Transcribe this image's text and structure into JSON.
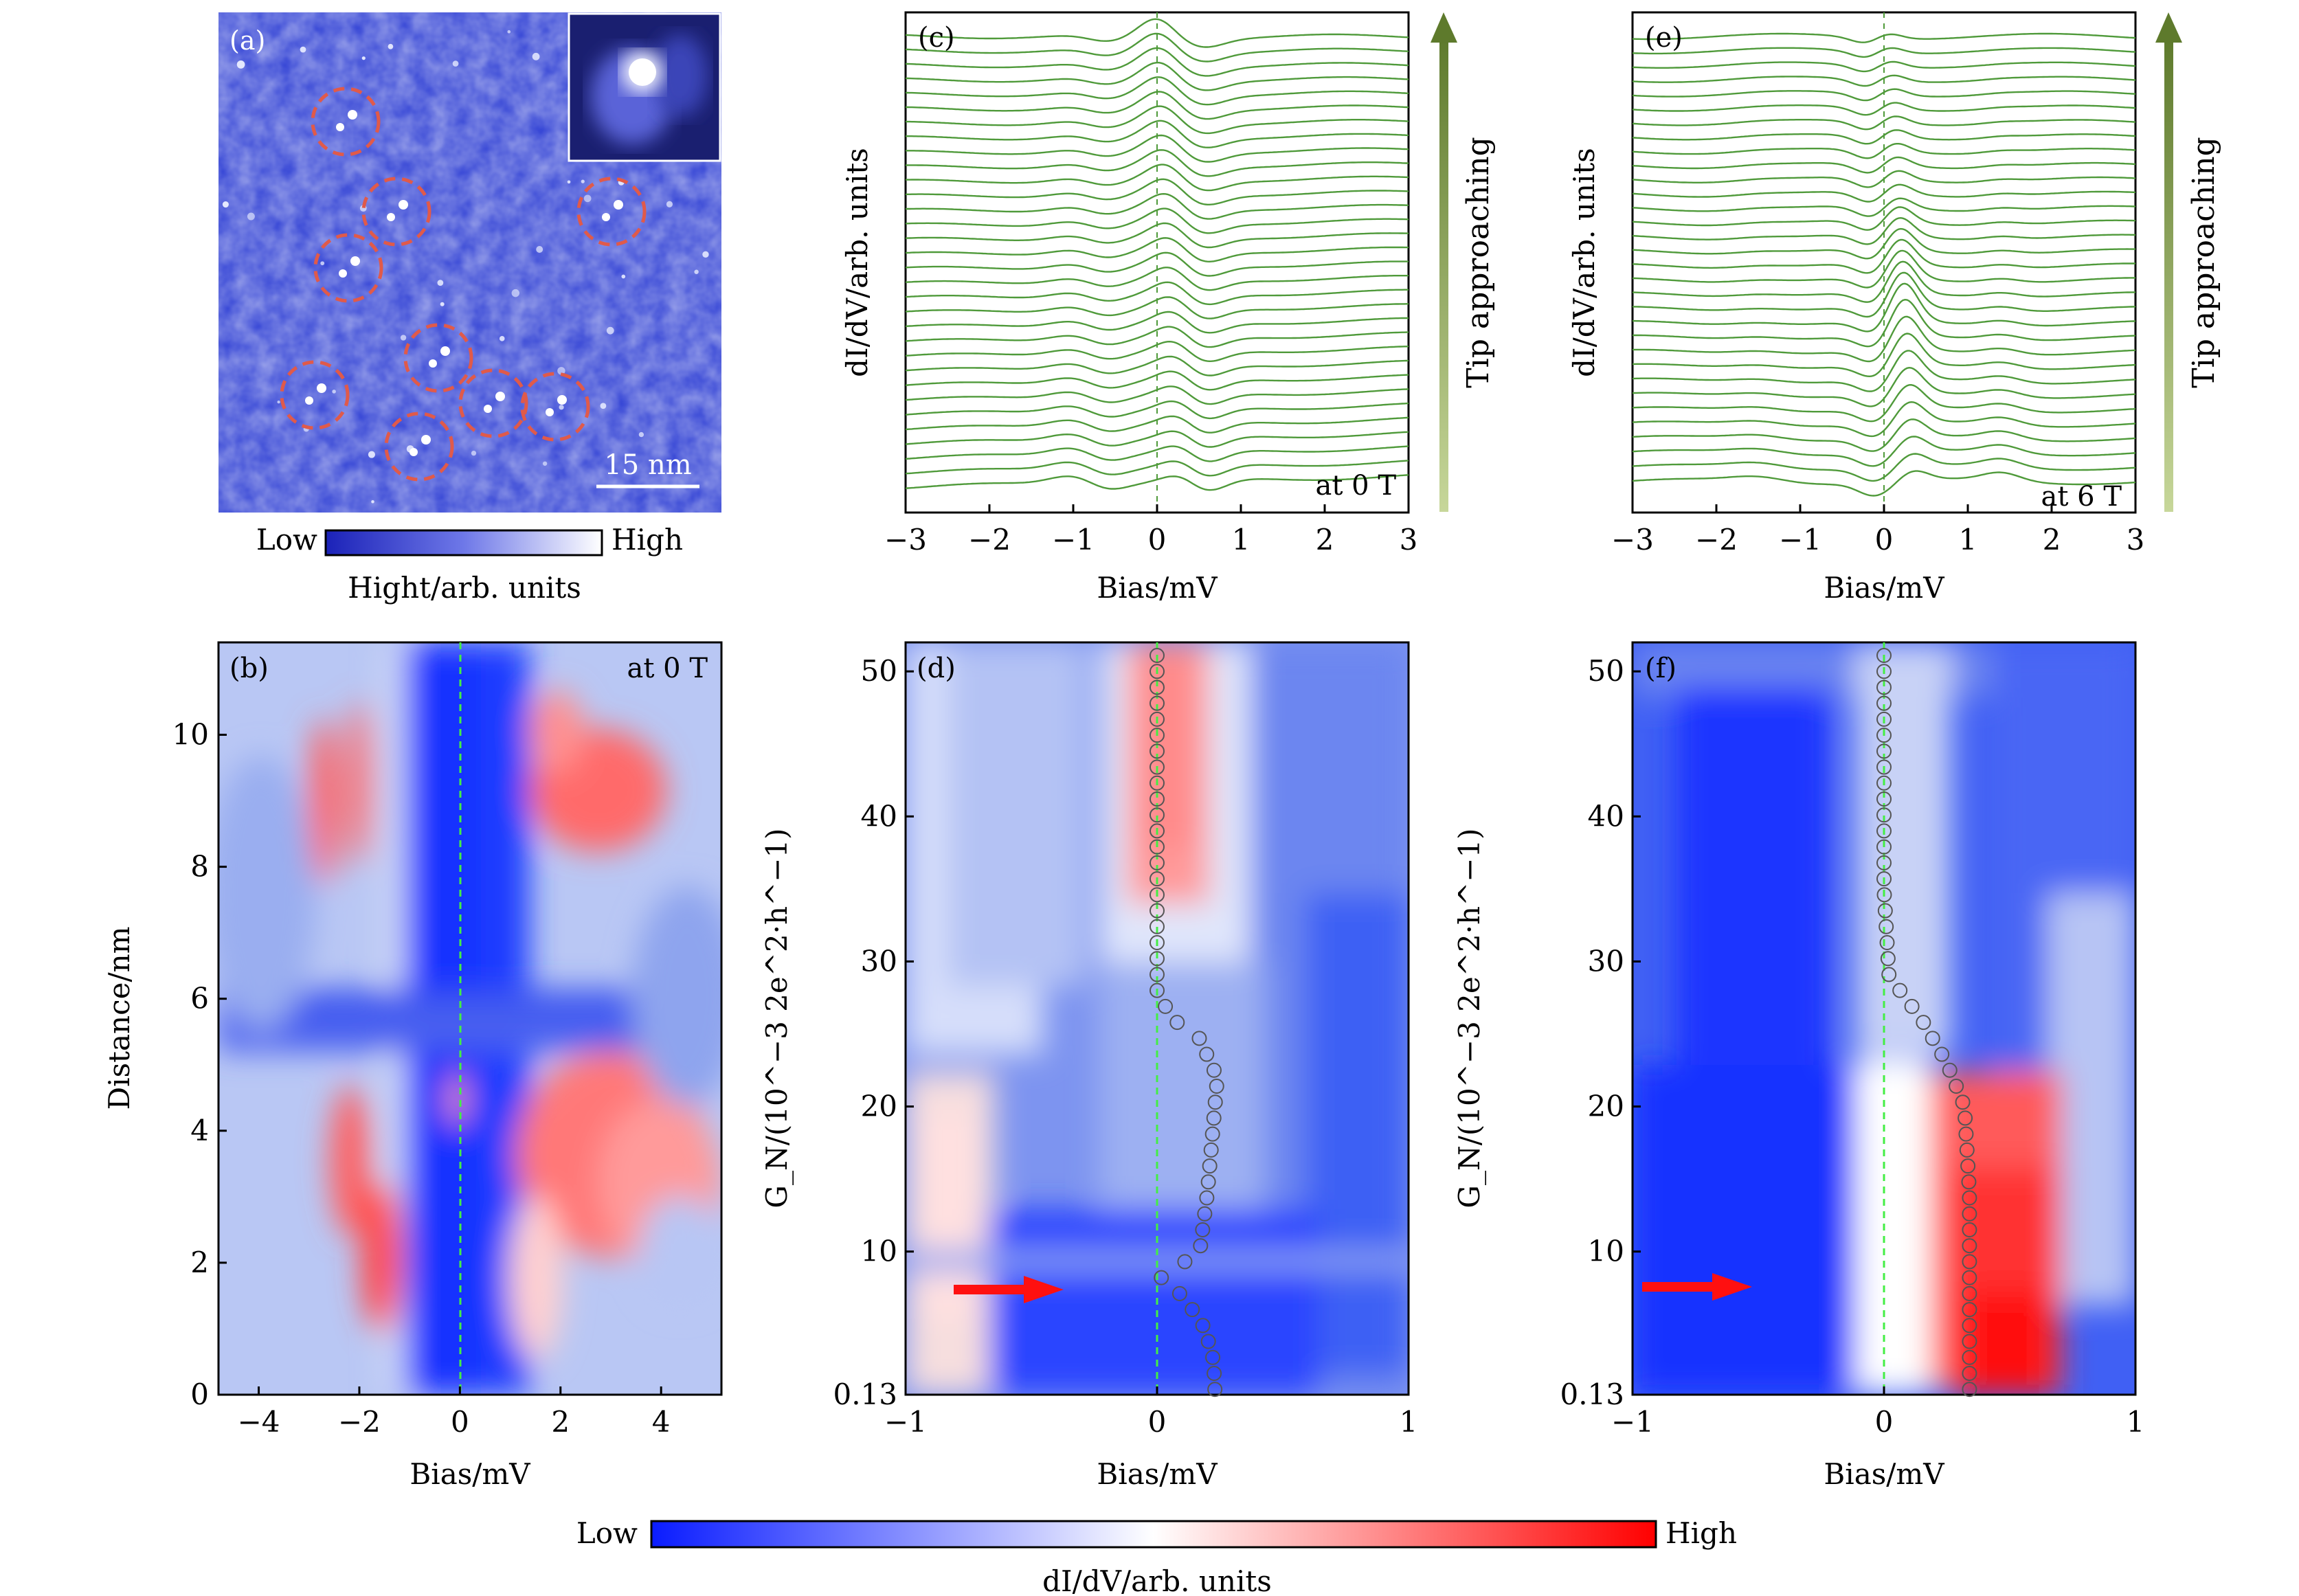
{
  "panels": {
    "a": {
      "tag": "(a)",
      "scale_bar_label": "15 nm",
      "colorbar": {
        "low": "Low",
        "high": "High",
        "label": "Hight/arb. units"
      },
      "circle_count": 9
    },
    "b": {
      "tag": "(b)",
      "field_label": "at 0 T",
      "xlabel": "Bias/mV",
      "ylabel": "Distance/nm",
      "xticks": [
        "−4",
        "−2",
        "0",
        "2",
        "4"
      ],
      "yticks": [
        "0",
        "2",
        "4",
        "6",
        "8",
        "10"
      ]
    },
    "c": {
      "tag": "(c)",
      "field_label": "at 0 T",
      "xlabel": "Bias/mV",
      "ylabel": "dI/dV/arb. units",
      "xticks": [
        "−3",
        "−2",
        "−1",
        "0",
        "1",
        "2",
        "3"
      ],
      "arrow_label": "Tip approaching"
    },
    "d": {
      "tag": "(d)",
      "xlabel": "Bias/mV",
      "ylabel": "G_N/(10^−3 2e^2·h^−1)",
      "xticks": [
        "−1",
        "0",
        "1"
      ],
      "yticks": [
        "0.13",
        "10",
        "20",
        "30",
        "40",
        "50"
      ]
    },
    "e": {
      "tag": "(e)",
      "field_label": "at 6 T",
      "xlabel": "Bias/mV",
      "ylabel": "dI/dV/arb. units",
      "xticks": [
        "−3",
        "−2",
        "−1",
        "0",
        "1",
        "2",
        "3"
      ],
      "arrow_label": "Tip approaching"
    },
    "f": {
      "tag": "(f)",
      "xlabel": "Bias/mV",
      "ylabel": "G_N/(10^−3 2e^2·h^−1)",
      "xticks": [
        "−1",
        "0",
        "1"
      ],
      "yticks": [
        "0.13",
        "10",
        "20",
        "30",
        "40",
        "50"
      ]
    }
  },
  "bottom_colorbar": {
    "low": "Low",
    "high": "High",
    "label": "dI/dV/arb. units"
  },
  "colors": {
    "trace": "#4f9a3a",
    "arrow": "#5e7a2c",
    "marker": "#e05a4a",
    "map_blue": "#1a2fff",
    "map_red": "#ff2020"
  },
  "chart_data": [
    {
      "id": "c",
      "type": "line",
      "x": [
        -3,
        -2,
        -1,
        0,
        1,
        2,
        3
      ],
      "xlim": [
        -3,
        3
      ],
      "series_count": 32,
      "peak_bias": {
        "bottom": 0.3,
        "top": 0.0
      },
      "note_marker_bias": 0
    },
    {
      "id": "e",
      "type": "line",
      "xlim": [
        -3,
        3
      ],
      "series_count": 32,
      "peak_bias": {
        "bottom": 0.35,
        "top": 0.0
      }
    },
    {
      "id": "d",
      "type": "heatmap",
      "xlim": [
        -1,
        1
      ],
      "ylim": [
        0.13,
        52
      ],
      "peak_trace": [
        {
          "g": 1,
          "bias": 0.23
        },
        {
          "g": 3,
          "bias": 0.22
        },
        {
          "g": 5,
          "bias": 0.18
        },
        {
          "g": 7,
          "bias": 0.1
        },
        {
          "g": 8,
          "bias": 0.0
        },
        {
          "g": 10,
          "bias": 0.17
        },
        {
          "g": 14,
          "bias": 0.2
        },
        {
          "g": 18,
          "bias": 0.22
        },
        {
          "g": 22,
          "bias": 0.24
        },
        {
          "g": 25,
          "bias": 0.16
        },
        {
          "g": 26,
          "bias": 0.06
        },
        {
          "g": 28,
          "bias": 0.0
        },
        {
          "g": 35,
          "bias": 0.0
        },
        {
          "g": 45,
          "bias": 0.0
        },
        {
          "g": 51,
          "bias": 0.0
        }
      ]
    },
    {
      "id": "f",
      "type": "heatmap",
      "xlim": [
        -1,
        1
      ],
      "ylim": [
        0.13,
        52
      ],
      "peak_trace": [
        {
          "g": 1,
          "bias": 0.34
        },
        {
          "g": 8,
          "bias": 0.34
        },
        {
          "g": 14,
          "bias": 0.34
        },
        {
          "g": 20,
          "bias": 0.32
        },
        {
          "g": 23,
          "bias": 0.25
        },
        {
          "g": 26,
          "bias": 0.15
        },
        {
          "g": 29,
          "bias": 0.02
        },
        {
          "g": 35,
          "bias": 0.0
        },
        {
          "g": 45,
          "bias": 0.0
        },
        {
          "g": 51,
          "bias": 0.0
        }
      ]
    }
  ]
}
